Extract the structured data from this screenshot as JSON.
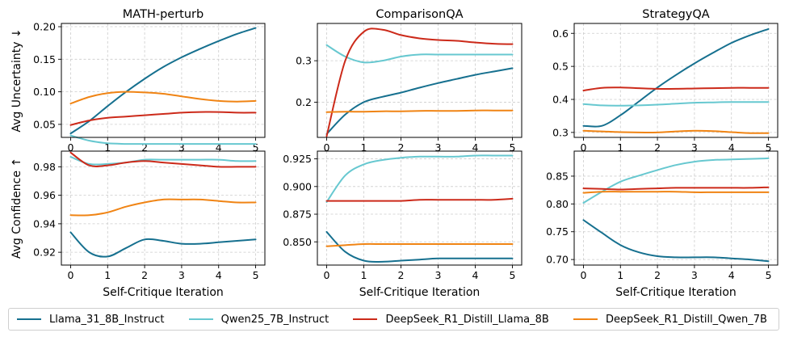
{
  "chart_data": {
    "type": "line",
    "x": [
      0,
      0.5,
      1,
      1.5,
      2,
      2.5,
      3,
      3.5,
      4,
      4.5,
      5
    ],
    "xlabel": "Self-Critique Iteration",
    "xticks": [
      "0",
      "1",
      "2",
      "3",
      "4",
      "5"
    ],
    "rows": [
      {
        "ylabel": "Avg Uncertainty ↓"
      },
      {
        "ylabel": "Avg Confidence ↑"
      }
    ],
    "grid": true,
    "legend_position": "bottom",
    "series_colors": {
      "Llama_31_8B_Instruct": "#16708f",
      "Qwen25_7B_Instruct": "#67c8d0",
      "DeepSeek_R1_Distill_Llama_8B": "#cc2a1a",
      "DeepSeek_R1_Distill_Qwen_7B": "#f08414"
    },
    "panels": [
      {
        "title": "MATH-perturb",
        "ylim": [
          0.03,
          0.205
        ],
        "yticks": [
          "0.05",
          "0.10",
          "0.15",
          "0.20"
        ],
        "series": [
          {
            "name": "Llama_31_8B_Instruct",
            "values": [
              0.036,
              0.055,
              0.078,
              0.1,
              0.12,
              0.138,
              0.153,
              0.166,
              0.178,
              0.189,
              0.198
            ]
          },
          {
            "name": "Qwen25_7B_Instruct",
            "values": [
              0.033,
              0.025,
              0.021,
              0.02,
              0.02,
              0.02,
              0.02,
              0.02,
              0.02,
              0.02,
              0.02
            ]
          },
          {
            "name": "DeepSeek_R1_Distill_Llama_8B",
            "values": [
              0.049,
              0.056,
              0.06,
              0.062,
              0.064,
              0.066,
              0.068,
              0.069,
              0.069,
              0.068,
              0.068
            ]
          },
          {
            "name": "DeepSeek_R1_Distill_Qwen_7B",
            "values": [
              0.082,
              0.092,
              0.098,
              0.1,
              0.099,
              0.097,
              0.093,
              0.089,
              0.086,
              0.085,
              0.086
            ]
          }
        ]
      },
      {
        "title": "ComparisonQA",
        "ylim": [
          0.115,
          0.39
        ],
        "yticks": [
          "0.2",
          "0.3"
        ],
        "series": [
          {
            "name": "Llama_31_8B_Instruct",
            "values": [
              0.123,
              0.17,
              0.2,
              0.213,
              0.223,
              0.235,
              0.246,
              0.256,
              0.266,
              0.274,
              0.282
            ]
          },
          {
            "name": "Qwen25_7B_Instruct",
            "values": [
              0.338,
              0.31,
              0.296,
              0.3,
              0.31,
              0.315,
              0.315,
              0.315,
              0.315,
              0.315,
              0.315
            ]
          },
          {
            "name": "DeepSeek_R1_Distill_Llama_8B",
            "values": [
              0.118,
              0.3,
              0.37,
              0.375,
              0.362,
              0.354,
              0.35,
              0.348,
              0.344,
              0.341,
              0.34
            ]
          },
          {
            "name": "DeepSeek_R1_Distill_Qwen_7B",
            "values": [
              0.176,
              0.177,
              0.177,
              0.178,
              0.178,
              0.179,
              0.179,
              0.179,
              0.18,
              0.18,
              0.18
            ]
          }
        ]
      },
      {
        "title": "StrategyQA",
        "ylim": [
          0.285,
          0.63
        ],
        "yticks": [
          "0.3",
          "0.4",
          "0.5",
          "0.6"
        ],
        "series": [
          {
            "name": "Llama_31_8B_Instruct",
            "values": [
              0.32,
              0.32,
              0.352,
              0.394,
              0.436,
              0.474,
              0.509,
              0.541,
              0.571,
              0.594,
              0.613
            ]
          },
          {
            "name": "Qwen25_7B_Instruct",
            "values": [
              0.386,
              0.382,
              0.381,
              0.382,
              0.384,
              0.387,
              0.39,
              0.391,
              0.392,
              0.392,
              0.392
            ]
          },
          {
            "name": "DeepSeek_R1_Distill_Llama_8B",
            "values": [
              0.427,
              0.435,
              0.436,
              0.434,
              0.432,
              0.432,
              0.433,
              0.434,
              0.435,
              0.435,
              0.435
            ]
          },
          {
            "name": "DeepSeek_R1_Distill_Qwen_7B",
            "values": [
              0.305,
              0.303,
              0.301,
              0.3,
              0.3,
              0.303,
              0.305,
              0.304,
              0.301,
              0.298,
              0.298
            ]
          }
        ]
      },
      {
        "title": "",
        "ylim": [
          0.911,
          0.991
        ],
        "yticks": [
          "0.92",
          "0.94",
          "0.96",
          "0.98"
        ],
        "series": [
          {
            "name": "Llama_31_8B_Instruct",
            "values": [
              0.934,
              0.92,
              0.917,
              0.923,
              0.929,
              0.928,
              0.926,
              0.926,
              0.927,
              0.928,
              0.929
            ]
          },
          {
            "name": "Qwen25_7B_Instruct",
            "values": [
              0.987,
              0.982,
              0.982,
              0.983,
              0.985,
              0.985,
              0.985,
              0.985,
              0.985,
              0.984,
              0.984
            ]
          },
          {
            "name": "DeepSeek_R1_Distill_Llama_8B",
            "values": [
              0.99,
              0.981,
              0.981,
              0.983,
              0.984,
              0.983,
              0.982,
              0.981,
              0.98,
              0.98,
              0.98
            ]
          },
          {
            "name": "DeepSeek_R1_Distill_Qwen_7B",
            "values": [
              0.946,
              0.946,
              0.948,
              0.952,
              0.955,
              0.957,
              0.957,
              0.957,
              0.956,
              0.955,
              0.955
            ]
          }
        ]
      },
      {
        "title": "",
        "ylim": [
          0.829,
          0.932
        ],
        "yticks": [
          "0.850",
          "0.875",
          "0.900",
          "0.925"
        ],
        "series": [
          {
            "name": "Llama_31_8B_Instruct",
            "values": [
              0.859,
              0.841,
              0.833,
              0.832,
              0.833,
              0.834,
              0.835,
              0.835,
              0.835,
              0.835,
              0.835
            ]
          },
          {
            "name": "Qwen25_7B_Instruct",
            "values": [
              0.886,
              0.91,
              0.92,
              0.924,
              0.926,
              0.927,
              0.927,
              0.927,
              0.928,
              0.928,
              0.928
            ]
          },
          {
            "name": "DeepSeek_R1_Distill_Llama_8B",
            "values": [
              0.887,
              0.887,
              0.887,
              0.887,
              0.887,
              0.888,
              0.888,
              0.888,
              0.888,
              0.888,
              0.889
            ]
          },
          {
            "name": "DeepSeek_R1_Distill_Qwen_7B",
            "values": [
              0.846,
              0.847,
              0.848,
              0.848,
              0.848,
              0.848,
              0.848,
              0.848,
              0.848,
              0.848,
              0.848
            ]
          }
        ]
      },
      {
        "title": "",
        "ylim": [
          0.69,
          0.895
        ],
        "yticks": [
          "0.70",
          "0.75",
          "0.80",
          "0.85"
        ],
        "series": [
          {
            "name": "Llama_31_8B_Instruct",
            "values": [
              0.771,
              0.748,
              0.726,
              0.713,
              0.706,
              0.704,
              0.704,
              0.704,
              0.702,
              0.7,
              0.697
            ]
          },
          {
            "name": "Qwen25_7B_Instruct",
            "values": [
              0.802,
              0.822,
              0.84,
              0.851,
              0.861,
              0.87,
              0.876,
              0.879,
              0.88,
              0.881,
              0.882
            ]
          },
          {
            "name": "DeepSeek_R1_Distill_Llama_8B",
            "values": [
              0.828,
              0.827,
              0.826,
              0.827,
              0.828,
              0.829,
              0.829,
              0.829,
              0.829,
              0.829,
              0.83
            ]
          },
          {
            "name": "DeepSeek_R1_Distill_Qwen_7B",
            "values": [
              0.82,
              0.822,
              0.822,
              0.822,
              0.822,
              0.822,
              0.821,
              0.821,
              0.821,
              0.821,
              0.821
            ]
          }
        ]
      }
    ]
  },
  "legend": [
    {
      "label": "Llama_31_8B_Instruct",
      "color": "#16708f"
    },
    {
      "label": "Qwen25_7B_Instruct",
      "color": "#67c8d0"
    },
    {
      "label": "DeepSeek_R1_Distill_Llama_8B",
      "color": "#cc2a1a"
    },
    {
      "label": "DeepSeek_R1_Distill_Qwen_7B",
      "color": "#f08414"
    }
  ]
}
